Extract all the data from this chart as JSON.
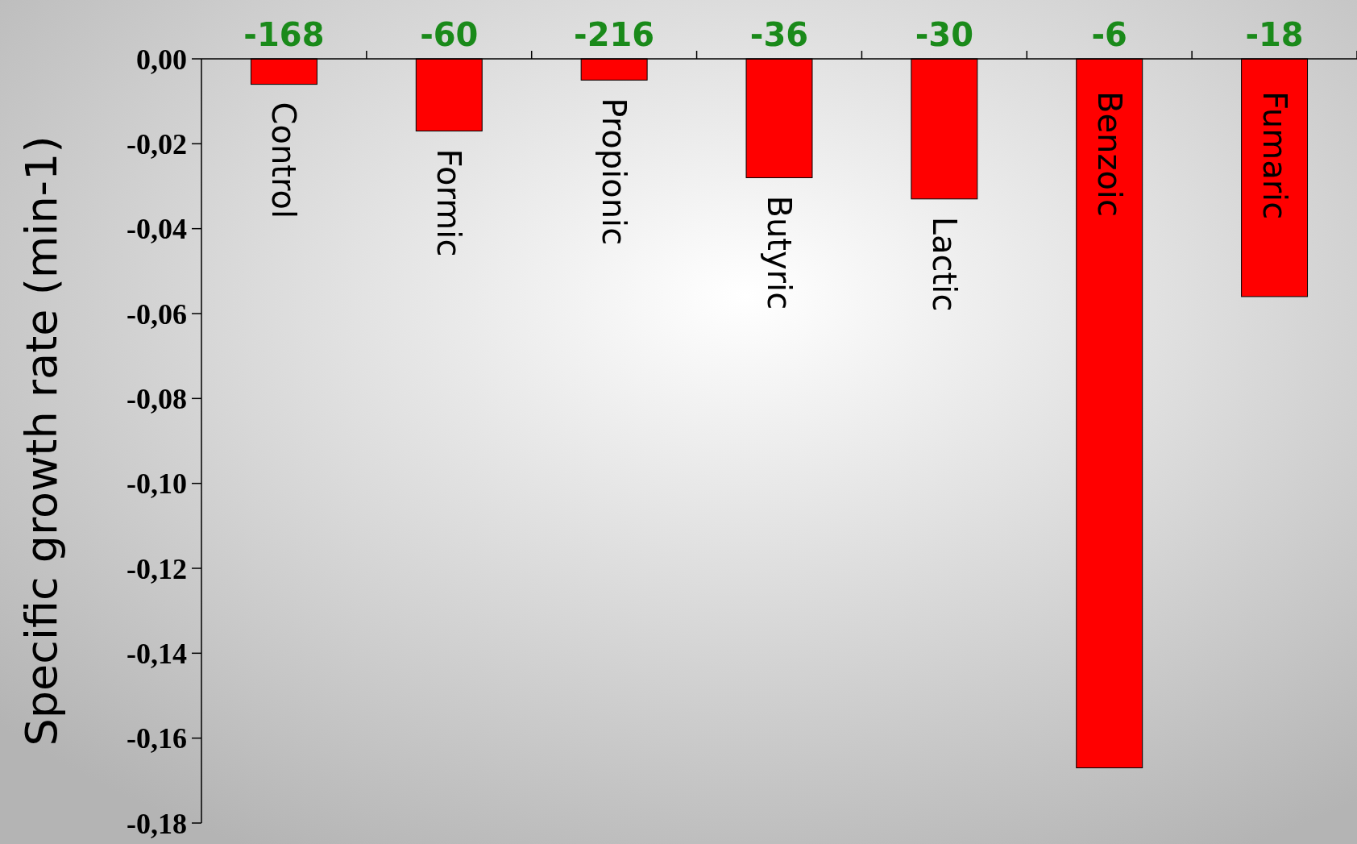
{
  "chart_data": {
    "type": "bar",
    "ylabel": "Specific growth rate (min-1)",
    "categories": [
      "Control",
      "Formic",
      "Propionic",
      "Butyric",
      "Lactic",
      "Benzoic",
      "Fumaric"
    ],
    "values": [
      -0.006,
      -0.017,
      -0.005,
      -0.028,
      -0.033,
      -0.167,
      -0.056
    ],
    "color": "#ff0000",
    "ylim": [
      -0.18,
      0
    ],
    "yticks": [
      {
        "value": 0,
        "label": "0,00"
      },
      {
        "value": -0.02,
        "label": "-0,02"
      },
      {
        "value": -0.04,
        "label": "-0,04"
      },
      {
        "value": -0.06,
        "label": "-0,06"
      },
      {
        "value": -0.08,
        "label": "-0,08"
      },
      {
        "value": -0.1,
        "label": "-0,10"
      },
      {
        "value": -0.12,
        "label": "-0,12"
      },
      {
        "value": -0.14,
        "label": "-0,14"
      },
      {
        "value": -0.16,
        "label": "-0,16"
      },
      {
        "value": -0.18,
        "label": "-0,18"
      }
    ],
    "annotations": [
      "-168",
      "-60",
      "-216",
      "-36",
      "-30",
      "-6",
      "-18"
    ],
    "grid": false
  }
}
